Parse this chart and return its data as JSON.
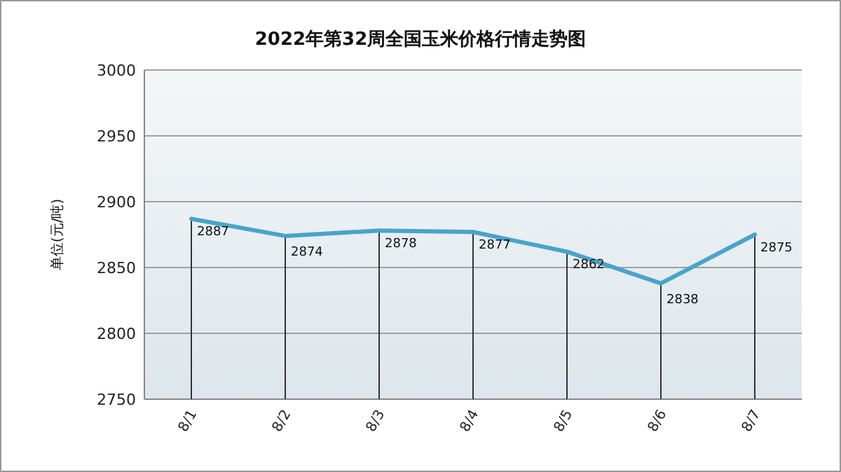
{
  "chart_data": {
    "type": "line",
    "title": "2022年第32周全国玉米价格行情走势图",
    "ylabel": "单位(元/吨)",
    "categories": [
      "8/1",
      "8/2",
      "8/3",
      "8/4",
      "8/5",
      "8/6",
      "8/7"
    ],
    "series": [
      {
        "color": "#4aa3c8",
        "values": [
          2887,
          2874,
          2878,
          2877,
          2862,
          2838,
          2875
        ]
      }
    ],
    "ylim": [
      2750,
      3000
    ],
    "yticks": [
      2750,
      2800,
      2850,
      2900,
      2950,
      3000
    ],
    "grid": "y",
    "data_labels": true,
    "marker": "none",
    "line_style": "solid"
  }
}
